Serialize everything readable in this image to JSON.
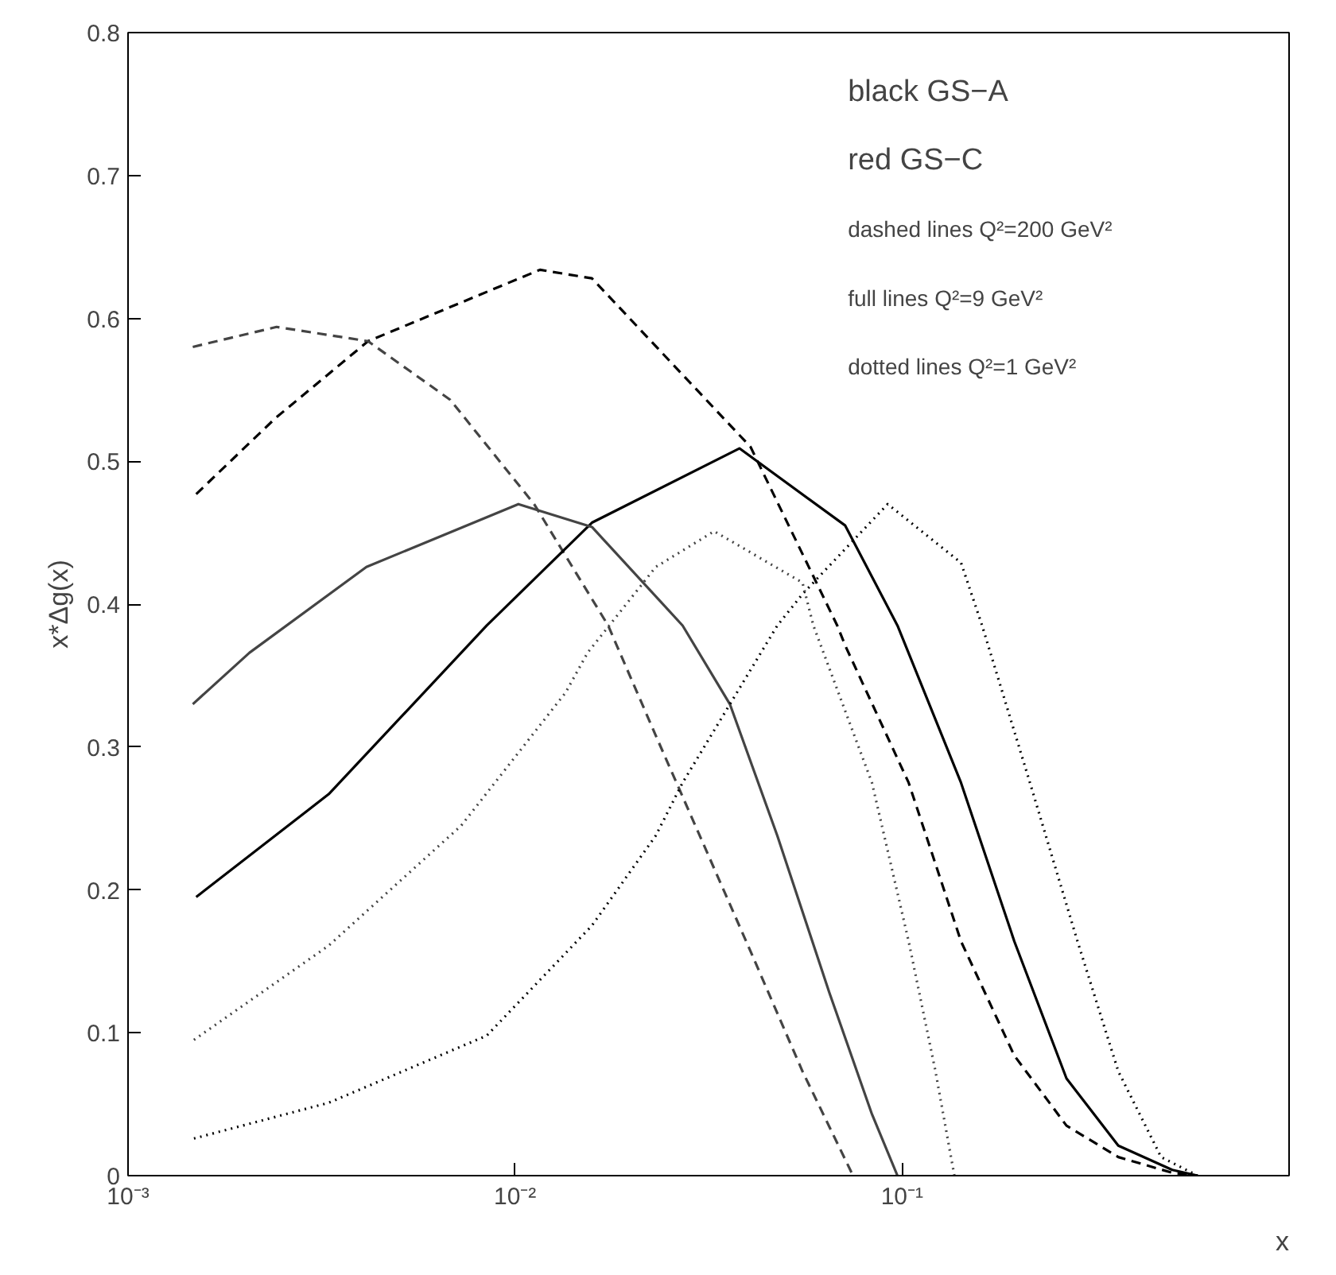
{
  "chart_data": {
    "type": "line",
    "xlabel": "x",
    "ylabel": "x*Δg(x)",
    "log": "x",
    "grid": false,
    "xlim": [
      0.001,
      1
    ],
    "ylim": [
      0,
      0.8
    ],
    "xticks": [
      {
        "value": 0.001,
        "label": "10⁻³"
      },
      {
        "value": 0.01,
        "label": "10⁻²"
      },
      {
        "value": 0.1,
        "label": "10⁻¹"
      }
    ],
    "yticks": [
      0,
      0.1,
      0.2,
      0.3,
      0.4,
      0.5,
      0.6,
      0.7,
      0.8
    ],
    "annotations": [
      "black GS−A",
      "red GS−C",
      "dashed lines Q²=200 GeV²",
      "full lines Q²=9 GeV²",
      "dotted lines Q²=1 GeV²"
    ],
    "series": [
      {
        "color": "#000000",
        "line_style": "dashed",
        "x": [
          0.0015,
          0.0024,
          0.00417,
          0.0116,
          0.0158,
          0.0406,
          0.068,
          0.0713,
          0.104,
          0.142,
          0.195,
          0.266,
          0.362,
          0.499,
          0.58
        ],
        "values": [
          0.477,
          0.53,
          0.584,
          0.634,
          0.628,
          0.51,
          0.385,
          0.371,
          0.275,
          0.164,
          0.084,
          0.035,
          0.013,
          0.002,
          0
        ]
      },
      {
        "color": "#444444",
        "line_style": "dashed",
        "x": [
          0.00147,
          0.00242,
          0.00417,
          0.0068,
          0.0112,
          0.0174,
          0.0231,
          0.0406,
          0.0553,
          0.0747
        ],
        "values": [
          0.58,
          0.594,
          0.584,
          0.543,
          0.47,
          0.385,
          0.308,
          0.157,
          0.073,
          0
        ]
      },
      {
        "color": "#000000",
        "line_style": "solid",
        "x": [
          0.0015,
          0.0033,
          0.00845,
          0.0158,
          0.038,
          0.0713,
          0.0973,
          0.142,
          0.195,
          0.266,
          0.362,
          0.499,
          0.58
        ],
        "values": [
          0.195,
          0.267,
          0.385,
          0.457,
          0.509,
          0.455,
          0.385,
          0.275,
          0.164,
          0.068,
          0.021,
          0.004,
          0
        ]
      },
      {
        "color": "#444444",
        "line_style": "solid",
        "x": [
          0.00147,
          0.00206,
          0.00413,
          0.0102,
          0.0158,
          0.0271,
          0.0359,
          0.0476,
          0.0649,
          0.0836,
          0.0973
        ],
        "values": [
          0.33,
          0.366,
          0.426,
          0.47,
          0.454,
          0.385,
          0.33,
          0.238,
          0.128,
          0.043,
          0
        ]
      },
      {
        "color": "#000000",
        "line_style": "dotted",
        "x": [
          0.00148,
          0.0033,
          0.00845,
          0.0158,
          0.0231,
          0.0271,
          0.0476,
          0.0553,
          0.0918,
          0.142,
          0.161,
          0.214,
          0.284,
          0.362,
          0.467,
          0.58
        ],
        "values": [
          0.026,
          0.051,
          0.098,
          0.175,
          0.238,
          0.275,
          0.385,
          0.407,
          0.47,
          0.429,
          0.385,
          0.275,
          0.164,
          0.073,
          0.013,
          0
        ]
      },
      {
        "color": "#444444",
        "line_style": "dotted",
        "x": [
          0.00148,
          0.0033,
          0.00726,
          0.0135,
          0.0154,
          0.0231,
          0.0327,
          0.0553,
          0.059,
          0.0836,
          0.104,
          0.122,
          0.1365
        ],
        "values": [
          0.095,
          0.161,
          0.245,
          0.338,
          0.366,
          0.426,
          0.451,
          0.415,
          0.385,
          0.275,
          0.164,
          0.073,
          0
        ]
      }
    ]
  }
}
